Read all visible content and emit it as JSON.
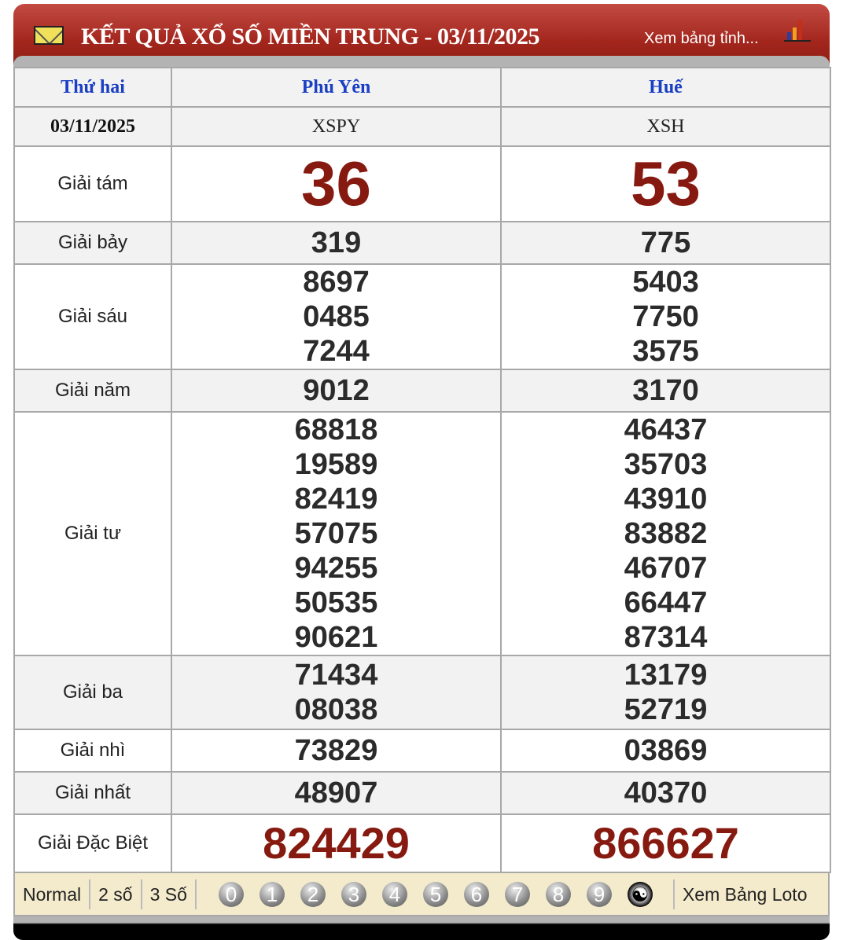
{
  "header": {
    "title": "KẾT QUẢ XỔ SỐ MIỀN TRUNG - 03/11/2025",
    "view_provinces": "Xem bảng tỉnh..."
  },
  "table": {
    "weekday": "Thứ hai",
    "date": "03/11/2025",
    "provinces": [
      {
        "name": "Phú Yên",
        "code": "XSPY"
      },
      {
        "name": "Huế",
        "code": "XSH"
      }
    ],
    "prizes": [
      {
        "label": "Giải tám",
        "values": [
          [
            "36"
          ],
          [
            "53"
          ]
        ]
      },
      {
        "label": "Giải bảy",
        "values": [
          [
            "319"
          ],
          [
            "775"
          ]
        ]
      },
      {
        "label": "Giải sáu",
        "values": [
          [
            "8697",
            "0485",
            "7244"
          ],
          [
            "5403",
            "7750",
            "3575"
          ]
        ]
      },
      {
        "label": "Giải năm",
        "values": [
          [
            "9012"
          ],
          [
            "3170"
          ]
        ]
      },
      {
        "label": "Giải tư",
        "values": [
          [
            "68818",
            "19589",
            "82419",
            "57075",
            "94255",
            "50535",
            "90621"
          ],
          [
            "46437",
            "35703",
            "43910",
            "83882",
            "46707",
            "66447",
            "87314"
          ]
        ]
      },
      {
        "label": "Giải ba",
        "values": [
          [
            "71434",
            "08038"
          ],
          [
            "13179",
            "52719"
          ]
        ]
      },
      {
        "label": "Giải nhì",
        "values": [
          [
            "73829"
          ],
          [
            "03869"
          ]
        ]
      },
      {
        "label": "Giải nhất",
        "values": [
          [
            "48907"
          ],
          [
            "40370"
          ]
        ]
      },
      {
        "label": "Giải Đặc Biệt",
        "values": [
          [
            "824429"
          ],
          [
            "866627"
          ]
        ]
      }
    ]
  },
  "footer": {
    "modes": [
      "Normal",
      "2 số",
      "3 Số"
    ],
    "digits": [
      "0",
      "1",
      "2",
      "3",
      "4",
      "5",
      "6",
      "7",
      "8",
      "9"
    ],
    "yin_yang": "☯",
    "loto": "Xem Bảng Loto"
  },
  "colors": {
    "header": "#a3261d",
    "prize_red": "#861a10",
    "province": "#1a3fc4",
    "bar": "#f4ebcc"
  }
}
